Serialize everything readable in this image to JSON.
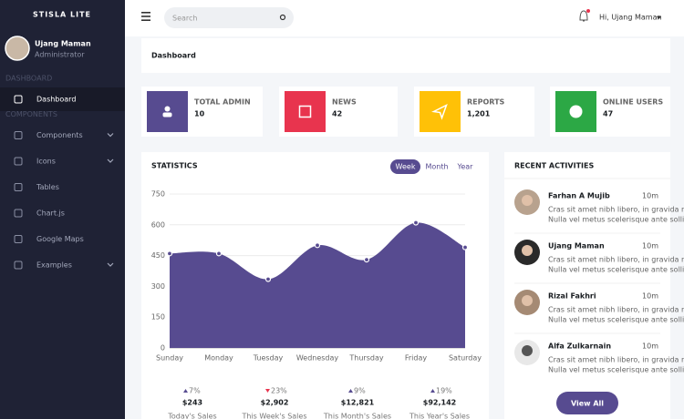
{
  "sidebar": {
    "brand": "STISLA LITE",
    "user": {
      "name": "Ujang Maman",
      "role": "Administrator"
    },
    "sections": [
      {
        "title": "DASHBOARD",
        "items": [
          {
            "label": "Dashboard",
            "active": true
          }
        ]
      },
      {
        "title": "COMPONENTS",
        "items": [
          {
            "label": "Components",
            "submenu": true
          },
          {
            "label": "Icons",
            "submenu": true
          },
          {
            "label": "Tables"
          },
          {
            "label": "Chart.js"
          },
          {
            "label": "Google Maps"
          },
          {
            "label": "Examples",
            "submenu": true
          }
        ]
      }
    ]
  },
  "header": {
    "search_placeholder": "Search",
    "greeting": "Hi, Ujang Maman"
  },
  "page_title": "Dashboard",
  "stat_cards": [
    {
      "label": "TOTAL ADMIN",
      "value": "10",
      "color": "#574b90"
    },
    {
      "label": "NEWS",
      "value": "42",
      "color": "#e8344e"
    },
    {
      "label": "REPORTS",
      "value": "1,201",
      "color": "#ffc107"
    },
    {
      "label": "ONLINE USERS",
      "value": "47",
      "color": "#2ca845"
    }
  ],
  "chart_data": {
    "type": "area",
    "title": "STATISTICS",
    "periods": [
      "Week",
      "Month",
      "Year"
    ],
    "active_period": 0,
    "categories": [
      "Sunday",
      "Monday",
      "Tuesday",
      "Wednesday",
      "Thursday",
      "Friday",
      "Saturday"
    ],
    "values": [
      460,
      460,
      335,
      500,
      430,
      610,
      490
    ],
    "color": "#574b90",
    "ylim": [
      0,
      750
    ],
    "yticks": [
      0,
      150,
      300,
      450,
      600,
      750
    ],
    "grid": true
  },
  "summary": [
    {
      "change": "7%",
      "trend": "up",
      "value": "$243",
      "label": "Today's Sales"
    },
    {
      "change": "23%",
      "trend": "down",
      "value": "$2,902",
      "label": "This Week's Sales"
    },
    {
      "change": "9%",
      "trend": "up",
      "value": "$12,821",
      "label": "This Month's Sales"
    },
    {
      "change": "19%",
      "trend": "up",
      "value": "$92,142",
      "label": "This Year's Sales"
    }
  ],
  "activities": {
    "title": "RECENT ACTIVITIES",
    "items": [
      {
        "name": "Farhan A Mujib",
        "time": "10m",
        "lines": [
          "Cras sit amet nibh libero, in gravida nulla.",
          "Nulla vel metus scelerisque ante sollicitudin."
        ]
      },
      {
        "name": "Ujang Maman",
        "time": "10m",
        "lines": [
          "Cras sit amet nibh libero, in gravida nulla.",
          "Nulla vel metus scelerisque ante sollicitudin."
        ]
      },
      {
        "name": "Rizal Fakhri",
        "time": "10m",
        "lines": [
          "Cras sit amet nibh libero, in gravida nulla.",
          "Nulla vel metus scelerisque ante sollicitudin."
        ]
      },
      {
        "name": "Alfa Zulkarnain",
        "time": "10m",
        "lines": [
          "Cras sit amet nibh libero, in gravida nulla.",
          "Nulla vel metus scelerisque ante sollicitudin."
        ]
      }
    ],
    "button": "View All"
  }
}
